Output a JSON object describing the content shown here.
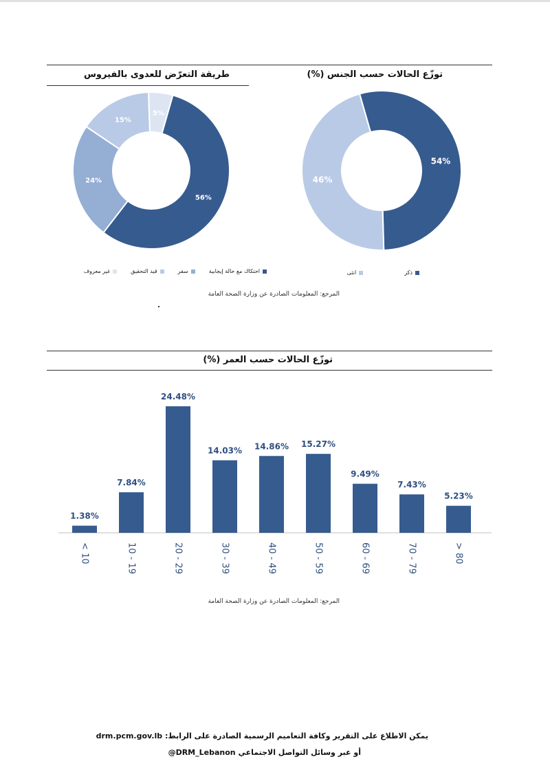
{
  "colors": {
    "dark": "#365b8f",
    "mid": "#94aed4",
    "light": "#b9cae6",
    "pale": "#dde5f3"
  },
  "charts": {
    "sex": {
      "title": "توزّع الحالات حسب الجنس (%)",
      "legend": [
        "ذكر",
        "انثى"
      ],
      "source": "المرجع: المعلومات الصادرة عن وزارة الصحة العامة"
    },
    "exposure": {
      "title": "طريقة التعرّض للعدوى بالفيروس",
      "legend": [
        "احتكاك مع حالة إيجابية",
        "سفر",
        "قيد التحقيق",
        "غير معروف"
      ],
      "source": ""
    },
    "age": {
      "title": "توزّع الحالات حسب العمر (%)",
      "source": "المرجع: المعلومات الصادرة عن وزارة الصحة العامة"
    }
  },
  "chart_data": [
    {
      "type": "pie",
      "variant": "donut",
      "title": "توزّع الحالات حسب الجنس (%)",
      "categories": [
        "ذكر",
        "انثى"
      ],
      "values": [
        54,
        46
      ],
      "labels": [
        "54%",
        "46%"
      ],
      "colors": [
        "#365b8f",
        "#b9cae6"
      ],
      "legend_position": "bottom"
    },
    {
      "type": "pie",
      "variant": "donut",
      "title": "طريقة التعرّض للعدوى بالفيروس",
      "categories": [
        "احتكاك مع حالة إيجابية",
        "سفر",
        "قيد التحقيق",
        "غير معروف"
      ],
      "values": [
        56,
        24,
        15,
        5
      ],
      "labels": [
        "56%",
        "24%",
        "15%",
        "5%"
      ],
      "colors": [
        "#365b8f",
        "#94aed4",
        "#b9cae6",
        "#dde5f3"
      ],
      "legend_position": "bottom"
    },
    {
      "type": "bar",
      "title": "توزّع الحالات حسب العمر (%)",
      "categories": [
        "< 10",
        "10 - 19",
        "20 - 29",
        "30 - 39",
        "40 - 49",
        "50 - 59",
        "60 - 69",
        "70 - 79",
        "> 80"
      ],
      "values": [
        1.38,
        7.84,
        24.48,
        14.03,
        14.86,
        15.27,
        9.49,
        7.43,
        5.23
      ],
      "labels": [
        "1.38%",
        "7.84%",
        "24.48%",
        "14.03%",
        "14.86%",
        "15.27%",
        "9.49%",
        "7.43%",
        "5.23%"
      ],
      "color": "#365b8f",
      "grid": false,
      "ylim": [
        0,
        25
      ]
    }
  ],
  "footer": {
    "line1_text": "يمكن الاطلاع على التقرير وكافة التعاميم الرسمية الصادرة على الرابط:",
    "line1_link": "drm.pcm.gov.lb",
    "line2_text": "أو عبر وسائل التواصل الاجتماعي",
    "line2_handle": "@DRM_Lebanon"
  }
}
